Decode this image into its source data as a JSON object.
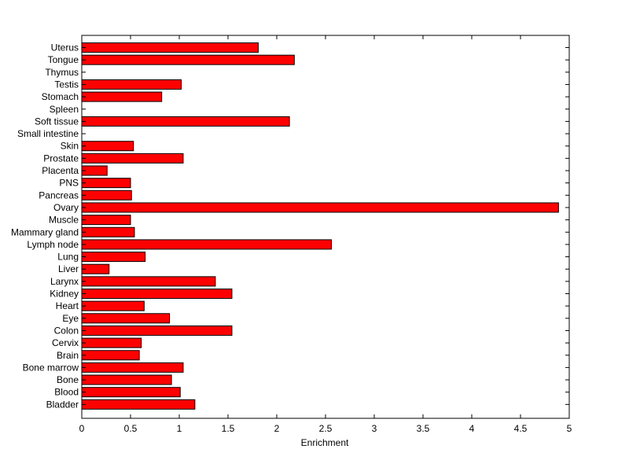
{
  "colors": {
    "background": "#ffffff",
    "bar_fill": "#ff0000",
    "bar_stroke": "#000000",
    "axis": "#000000"
  },
  "chart_data": {
    "type": "bar",
    "orientation": "horizontal",
    "title": "",
    "xlabel": "Enrichment",
    "ylabel": "",
    "xlim": [
      0,
      5
    ],
    "xticks": [
      "0",
      "0.5",
      "1",
      "1.5",
      "2",
      "2.5",
      "3",
      "3.5",
      "4",
      "4.5",
      "5"
    ],
    "grid": false,
    "categories": [
      "Uterus",
      "Tongue",
      "Thymus",
      "Testis",
      "Stomach",
      "Spleen",
      "Soft tissue",
      "Small intestine",
      "Skin",
      "Prostate",
      "Placenta",
      "PNS",
      "Pancreas",
      "Ovary",
      "Muscle",
      "Mammary gland",
      "Lymph node",
      "Lung",
      "Liver",
      "Larynx",
      "Kidney",
      "Heart",
      "Eye",
      "Colon",
      "Cervix",
      "Brain",
      "Bone marrow",
      "Bone",
      "Blood",
      "Bladder"
    ],
    "values": [
      1.81,
      2.18,
      0,
      1.02,
      0.82,
      0,
      2.13,
      0,
      0.53,
      1.04,
      0.26,
      0.5,
      0.51,
      4.89,
      0.5,
      0.54,
      2.56,
      0.65,
      0.28,
      1.37,
      1.54,
      0.64,
      0.9,
      1.54,
      0.61,
      0.59,
      1.04,
      0.92,
      1.01,
      1.16
    ]
  }
}
